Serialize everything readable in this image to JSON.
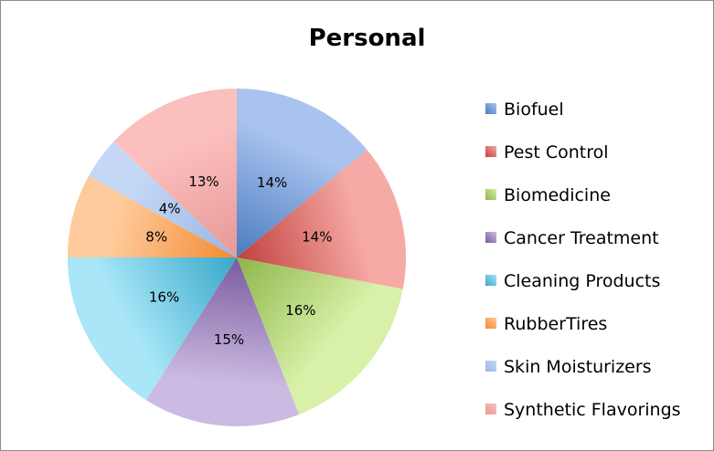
{
  "chart_data": {
    "type": "pie",
    "title": "Personal",
    "categories": [
      "Biofuel",
      "Pest Control",
      "Biomedicine",
      "Cancer Treatment",
      "Cleaning Products",
      "RubberTires",
      "Skin Moisturizers",
      "Synthetic Flavorings"
    ],
    "values": [
      14,
      14,
      16,
      15,
      16,
      8,
      4,
      13
    ],
    "data_labels": [
      "14%",
      "14%",
      "16%",
      "15%",
      "16%",
      "8%",
      "4%",
      "13%"
    ],
    "colors": [
      {
        "dark": "#4a7cc0",
        "light": "#a9c3ee"
      },
      {
        "dark": "#c0403d",
        "light": "#f6aaa6"
      },
      {
        "dark": "#8db64a",
        "light": "#d8f0a8"
      },
      {
        "dark": "#7a5b9e",
        "light": "#cbbbe2"
      },
      {
        "dark": "#37a8c8",
        "light": "#a8e6f8"
      },
      {
        "dark": "#f28a30",
        "light": "#ffcb9c"
      },
      {
        "dark": "#9ab6e4",
        "light": "#c4d8f6"
      },
      {
        "dark": "#e89896",
        "light": "#fbc0be"
      }
    ],
    "legend_position": "right",
    "start_angle": "top, clockwise"
  }
}
